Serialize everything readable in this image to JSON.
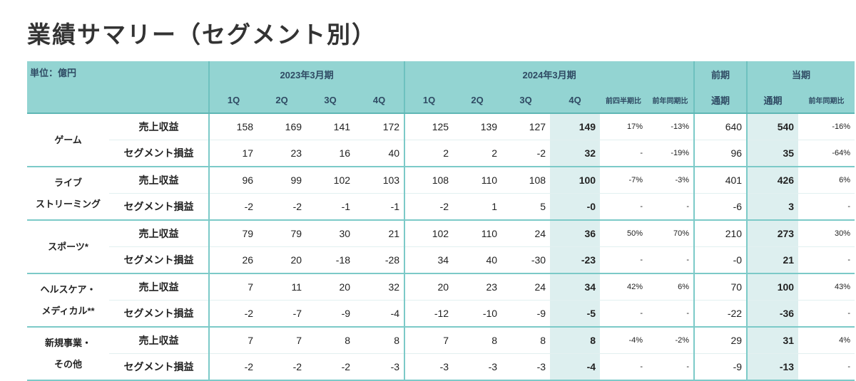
{
  "title": "業績サマリー（セグメント別）",
  "header": {
    "unit": "単位：億円",
    "fy2023": "2023年3月期",
    "fy2024": "2024年3月期",
    "prev": "前期",
    "curr": "当期",
    "q": [
      "1Q",
      "2Q",
      "3Q",
      "4Q"
    ],
    "qoq": "前四半期比",
    "yoy": "前年同期比",
    "full": "通期"
  },
  "segments": [
    {
      "name": "ゲーム",
      "rows": [
        {
          "metric": "売上収益",
          "fy23": [
            "158",
            "169",
            "141",
            "172"
          ],
          "fy24": [
            "125",
            "139",
            "127",
            "149"
          ],
          "qoq": "17%",
          "yoy": "-13%",
          "prev": "640",
          "curr": "540",
          "curr_yoy": "-16%"
        },
        {
          "metric": "セグメント損益",
          "fy23": [
            "17",
            "23",
            "16",
            "40"
          ],
          "fy24": [
            "2",
            "2",
            "-2",
            "32"
          ],
          "qoq": "-",
          "yoy": "-19%",
          "prev": "96",
          "curr": "35",
          "curr_yoy": "-64%"
        }
      ]
    },
    {
      "name": "ライブ\nストリーミング",
      "rows": [
        {
          "metric": "売上収益",
          "fy23": [
            "96",
            "99",
            "102",
            "103"
          ],
          "fy24": [
            "108",
            "110",
            "108",
            "100"
          ],
          "qoq": "-7%",
          "yoy": "-3%",
          "prev": "401",
          "curr": "426",
          "curr_yoy": "6%"
        },
        {
          "metric": "セグメント損益",
          "fy23": [
            "-2",
            "-2",
            "-1",
            "-1"
          ],
          "fy24": [
            "-2",
            "1",
            "5",
            "-0"
          ],
          "qoq": "-",
          "yoy": "-",
          "prev": "-6",
          "curr": "3",
          "curr_yoy": "-"
        }
      ]
    },
    {
      "name": "スポーツ*",
      "rows": [
        {
          "metric": "売上収益",
          "fy23": [
            "79",
            "79",
            "30",
            "21"
          ],
          "fy24": [
            "102",
            "110",
            "24",
            "36"
          ],
          "qoq": "50%",
          "yoy": "70%",
          "prev": "210",
          "curr": "273",
          "curr_yoy": "30%"
        },
        {
          "metric": "セグメント損益",
          "fy23": [
            "26",
            "20",
            "-18",
            "-28"
          ],
          "fy24": [
            "34",
            "40",
            "-30",
            "-23"
          ],
          "qoq": "-",
          "yoy": "-",
          "prev": "-0",
          "curr": "21",
          "curr_yoy": "-"
        }
      ]
    },
    {
      "name": "ヘルスケア・\nメディカル**",
      "rows": [
        {
          "metric": "売上収益",
          "fy23": [
            "7",
            "11",
            "20",
            "32"
          ],
          "fy24": [
            "20",
            "23",
            "24",
            "34"
          ],
          "qoq": "42%",
          "yoy": "6%",
          "prev": "70",
          "curr": "100",
          "curr_yoy": "43%"
        },
        {
          "metric": "セグメント損益",
          "fy23": [
            "-2",
            "-7",
            "-9",
            "-4"
          ],
          "fy24": [
            "-12",
            "-10",
            "-9",
            "-5"
          ],
          "qoq": "-",
          "yoy": "-",
          "prev": "-22",
          "curr": "-36",
          "curr_yoy": "-"
        }
      ]
    },
    {
      "name": "新規事業・\nその他",
      "rows": [
        {
          "metric": "売上収益",
          "fy23": [
            "7",
            "7",
            "8",
            "8"
          ],
          "fy24": [
            "7",
            "8",
            "8",
            "8"
          ],
          "qoq": "-4%",
          "yoy": "-2%",
          "prev": "29",
          "curr": "31",
          "curr_yoy": "4%"
        },
        {
          "metric": "セグメント損益",
          "fy23": [
            "-2",
            "-2",
            "-2",
            "-3"
          ],
          "fy24": [
            "-3",
            "-3",
            "-3",
            "-4"
          ],
          "qoq": "-",
          "yoy": "-",
          "prev": "-9",
          "curr": "-13",
          "curr_yoy": "-"
        }
      ]
    }
  ]
}
